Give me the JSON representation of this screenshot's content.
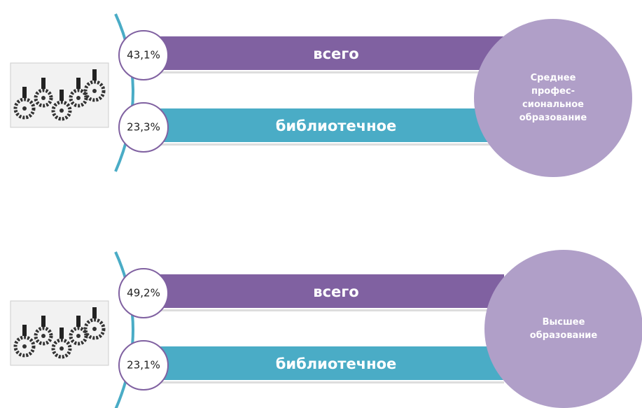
{
  "groups": [
    {
      "rows": [
        {
          "percent": "43,1%",
          "label": "всего"
        },
        {
          "percent": "23,3%",
          "label": "библиотечное"
        }
      ],
      "circle_lines": [
        "Среднее",
        "профес-",
        "сиональное",
        "образование"
      ]
    },
    {
      "rows": [
        {
          "percent": "49,2%",
          "label": "всего"
        },
        {
          "percent": "23,1%",
          "label": "библиотечное"
        }
      ],
      "circle_lines": [
        "Высшее",
        "образование"
      ]
    }
  ]
}
